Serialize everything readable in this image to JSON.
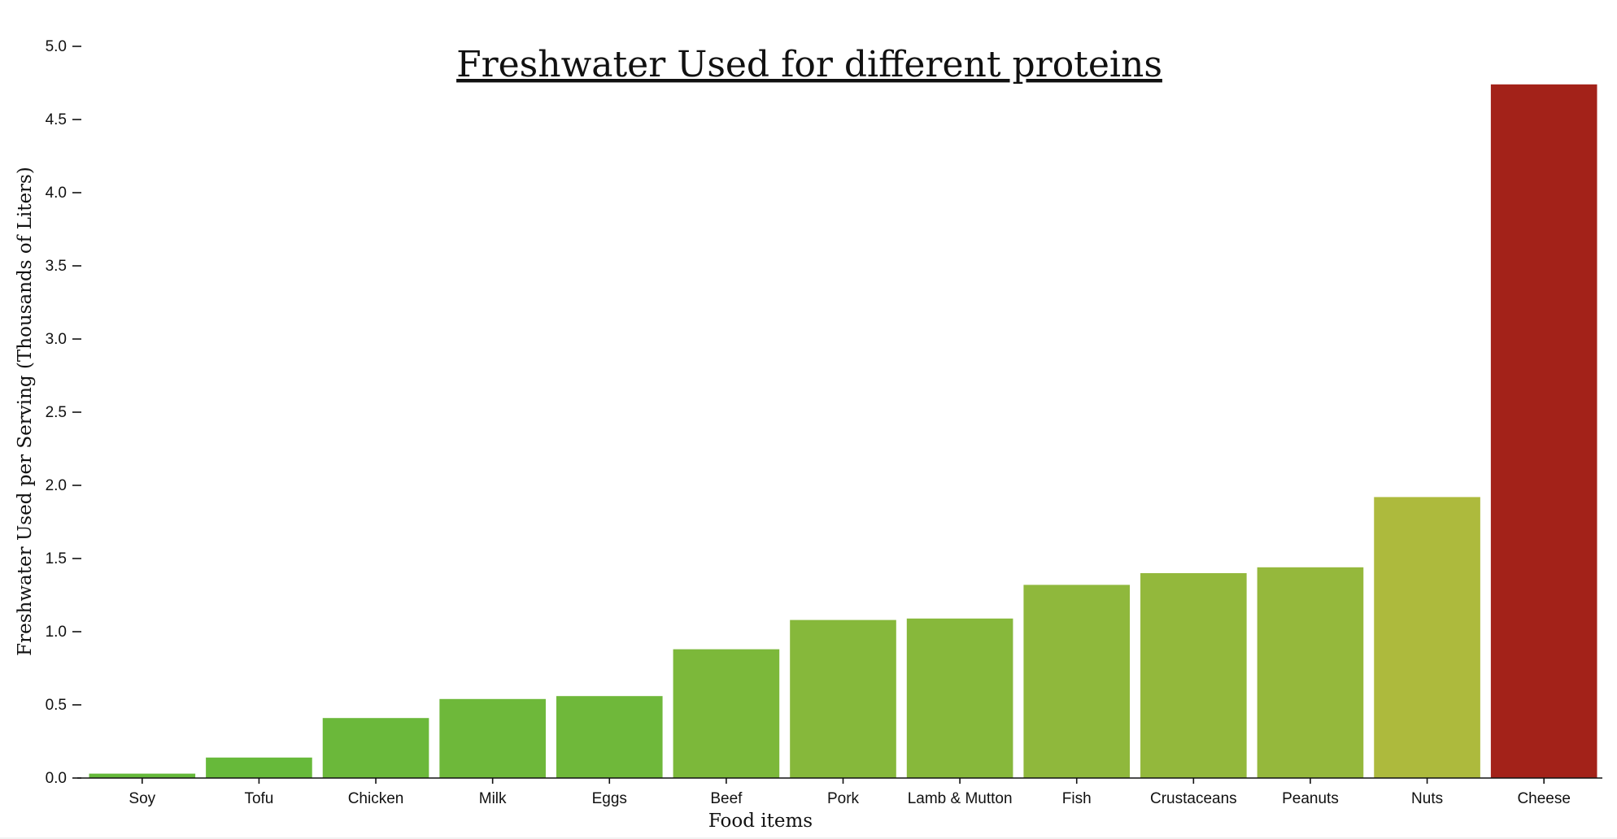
{
  "chart_data": {
    "type": "bar",
    "title": "Freshwater Used for different proteins",
    "xlabel": "Food items",
    "ylabel": "Freshwater Used per Serving (Thousands of Liters)",
    "ylim": [
      0,
      5.0
    ],
    "yticks": [
      "0.0",
      "0.5",
      "1.0",
      "1.5",
      "2.0",
      "2.5",
      "3.0",
      "3.5",
      "4.0",
      "4.5",
      "5.0"
    ],
    "grid": false,
    "categories": [
      "Soy",
      "Tofu",
      "Chicken",
      "Milk",
      "Eggs",
      "Beef",
      "Pork",
      "Lamb & Mutton",
      "Fish",
      "Crustaceans",
      "Peanuts",
      "Nuts",
      "Cheese"
    ],
    "values": [
      0.03,
      0.14,
      0.41,
      0.54,
      0.56,
      0.88,
      1.08,
      1.09,
      1.32,
      1.4,
      1.44,
      1.92,
      4.74
    ],
    "colors": [
      "#65b93a",
      "#67b93a",
      "#6bb83a",
      "#6eb83a",
      "#6fb83a",
      "#7cb83a",
      "#86b83b",
      "#87b83b",
      "#8fb83c",
      "#93b83c",
      "#95b83c",
      "#adba3d",
      "#a32219"
    ]
  }
}
